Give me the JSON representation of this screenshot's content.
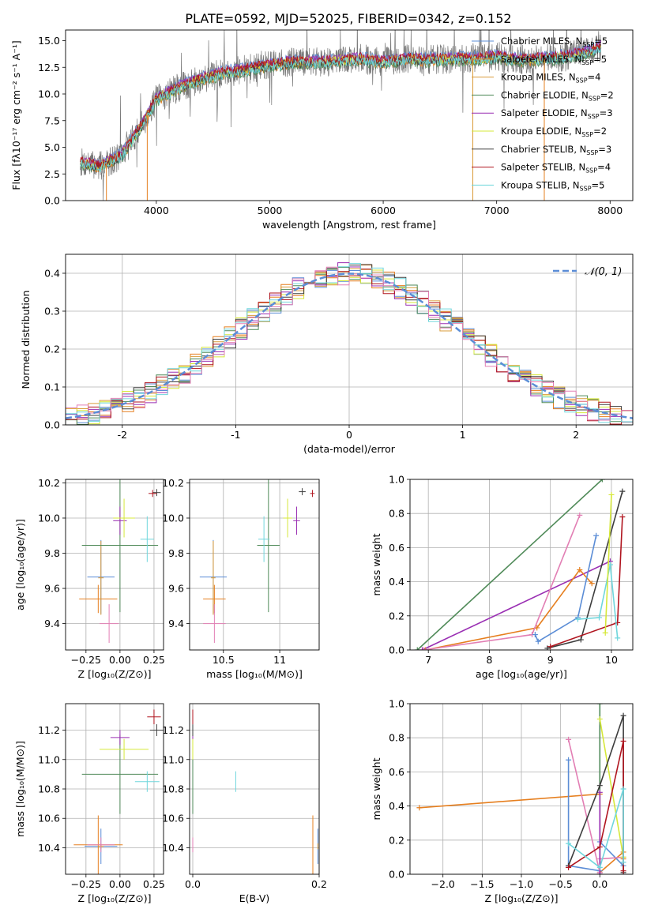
{
  "figure_title": "PLATE=0592, MJD=52025, FIBERID=0342, z=0.152",
  "palette": {
    "Chabrier MILES": "#5b8dd6",
    "Salpeter MILES": "#e67f1f",
    "Kroupa MILES": "#d99b3a",
    "Chabrier ELODIE": "#4f8a58",
    "Salpeter ELODIE": "#9a2fb3",
    "Kroupa ELODIE": "#d6e83a",
    "Chabrier STELIB": "#3d3d3d",
    "Salpeter STELIB": "#b0151f",
    "Kroupa STELIB": "#6fd6dc",
    "pink": "#e27fb4",
    "data": "#777777",
    "normal": "#5b8dd6"
  },
  "chart_data": [
    {
      "id": "spectrum",
      "type": "line",
      "xlabel": "wavelength [Angstrom, rest frame]",
      "ylabel": "Flux [fλ10⁻¹⁷ erg cm⁻² s⁻¹ A⁻¹]",
      "xlim": [
        3200,
        8200
      ],
      "ylim": [
        0,
        16
      ],
      "xticks": [
        4000,
        5000,
        6000,
        7000,
        8000
      ],
      "yticks": [
        0.0,
        2.5,
        5.0,
        7.5,
        10.0,
        12.5,
        15.0
      ],
      "legend_position": "top-right",
      "continuum": {
        "x": [
          3330,
          3500,
          3700,
          3900,
          4000,
          4200,
          4400,
          4600,
          4800,
          5000,
          5200,
          5400,
          5600,
          5800,
          6000,
          6200,
          6400,
          6600,
          6800,
          7000,
          7200,
          7400,
          7600,
          7800,
          7920
        ],
        "y": [
          3.6,
          3.2,
          4.3,
          7.6,
          9.5,
          10.6,
          11.4,
          12.0,
          12.3,
          12.7,
          13.0,
          13.0,
          13.1,
          13.3,
          13.0,
          13.3,
          13.2,
          13.3,
          13.3,
          13.5,
          13.2,
          13.3,
          13.5,
          13.9,
          14.4
        ]
      },
      "series": [
        {
          "name": "Chabrier MILES, N_SSP=5",
          "offset": 0.3
        },
        {
          "name": "Salpeter MILES, N_SSP=5",
          "offset": -0.2
        },
        {
          "name": "Kroupa MILES, N_SSP=4",
          "offset": 0.1
        },
        {
          "name": "Chabrier ELODIE, N_SSP=2",
          "offset": -0.3
        },
        {
          "name": "Salpeter ELODIE, N_SSP=3",
          "offset": 0.2
        },
        {
          "name": "Kroupa ELODIE, N_SSP=2",
          "offset": 0.0
        },
        {
          "name": "Chabrier STELIB, N_SSP=3",
          "offset": -0.1
        },
        {
          "name": "Salpeter STELIB, N_SSP=4",
          "offset": 0.15
        },
        {
          "name": "Kroupa STELIB, N_SSP=5",
          "offset": -0.15
        }
      ],
      "legend": [
        {
          "key": "Chabrier MILES",
          "label": "Chabrier MILES, N",
          "sub": "SSP",
          "tail": "=5"
        },
        {
          "key": "Salpeter MILES",
          "label": "Salpeter MILES, N",
          "sub": "SSP",
          "tail": "=5"
        },
        {
          "key": "Kroupa MILES",
          "label": "Kroupa MILES, N",
          "sub": "SSP",
          "tail": "=4"
        },
        {
          "key": "Chabrier ELODIE",
          "label": "Chabrier ELODIE, N",
          "sub": "SSP",
          "tail": "=2"
        },
        {
          "key": "Salpeter ELODIE",
          "label": "Salpeter ELODIE, N",
          "sub": "SSP",
          "tail": "=3"
        },
        {
          "key": "Kroupa ELODIE",
          "label": "Kroupa ELODIE, N",
          "sub": "SSP",
          "tail": "=2"
        },
        {
          "key": "Chabrier STELIB",
          "label": "Chabrier STELIB, N",
          "sub": "SSP",
          "tail": "=3"
        },
        {
          "key": "Salpeter STELIB",
          "label": "Salpeter STELIB, N",
          "sub": "SSP",
          "tail": "=4"
        },
        {
          "key": "Kroupa STELIB",
          "label": "Kroupa STELIB, N",
          "sub": "SSP",
          "tail": "=5"
        }
      ]
    },
    {
      "id": "residuals",
      "type": "histogram",
      "xlabel": "(data-model)/error",
      "ylabel": "Normed distribution",
      "xlim": [
        -2.5,
        2.5
      ],
      "ylim": [
        0,
        0.45
      ],
      "xticks": [
        -2,
        -1,
        0,
        1,
        2
      ],
      "yticks": [
        0.0,
        0.1,
        0.2,
        0.3,
        0.4
      ],
      "grid": true,
      "bin_width": 0.1,
      "normal_label": "𝒩(0, 1)",
      "legend_position": "top-right"
    },
    {
      "id": "age_vs_Z",
      "type": "errorbar",
      "xlabel": "Z [log₁₀(Z/Z⊙)]",
      "ylabel": "age  [log₁₀(age/yr)]",
      "xlim": [
        -0.4,
        0.32
      ],
      "ylim": [
        9.25,
        10.22
      ],
      "xticks": [
        -0.25,
        0.0,
        0.25
      ],
      "xticklabels": [
        "−0.25",
        "0.00",
        "0.25"
      ],
      "yticks": [
        9.4,
        9.6,
        9.8,
        10.0,
        10.2
      ],
      "grid": true,
      "points": [
        {
          "key": "Chabrier MILES",
          "x": -0.14,
          "y": 9.665,
          "xerr": 0.1,
          "yerr": 0.21
        },
        {
          "key": "Salpeter MILES",
          "x": -0.16,
          "y": 9.54,
          "xerr": 0.14,
          "yerr": 0.08
        },
        {
          "key": "Kroupa MILES",
          "x": -0.14,
          "y": 9.66,
          "xerr": 0.02,
          "yerr": 0.21
        },
        {
          "key": "Chabrier ELODIE",
          "x": 0.0,
          "y": 9.845,
          "xerr": 0.28,
          "yerr": 0.38
        },
        {
          "key": "Salpeter ELODIE",
          "x": 0.0,
          "y": 9.985,
          "xerr": 0.05,
          "yerr": 0.08
        },
        {
          "key": "Kroupa ELODIE",
          "x": 0.03,
          "y": 10.0,
          "xerr": 0.08,
          "yerr": 0.11
        },
        {
          "key": "Chabrier STELIB",
          "x": 0.27,
          "y": 10.145,
          "xerr": 0.03,
          "yerr": 0.02
        },
        {
          "key": "Salpeter STELIB",
          "x": 0.24,
          "y": 10.14,
          "xerr": 0.03,
          "yerr": 0.02
        },
        {
          "key": "Kroupa STELIB",
          "x": 0.2,
          "y": 9.88,
          "xerr": 0.05,
          "yerr": 0.13
        },
        {
          "key": "pink",
          "x": -0.08,
          "y": 9.4,
          "xerr": 0.07,
          "yerr": 0.11
        }
      ]
    },
    {
      "id": "age_vs_mass",
      "type": "errorbar",
      "xlabel": "mass [log₁₀(M/M⊙)]",
      "ylabel": "",
      "xlim": [
        10.2,
        11.35
      ],
      "ylim": [
        9.25,
        10.22
      ],
      "xticks": [
        10.5,
        11.0
      ],
      "yticks": [
        9.4,
        9.6,
        9.8,
        10.0,
        10.2
      ],
      "grid": true,
      "points": [
        {
          "key": "Chabrier MILES",
          "x": 10.41,
          "y": 9.665,
          "xerr": 0.12,
          "yerr": 0.21
        },
        {
          "key": "Salpeter MILES",
          "x": 10.42,
          "y": 9.54,
          "xerr": 0.1,
          "yerr": 0.08
        },
        {
          "key": "Kroupa MILES",
          "x": 10.41,
          "y": 9.66,
          "xerr": 0.02,
          "yerr": 0.21
        },
        {
          "key": "Chabrier ELODIE",
          "x": 10.9,
          "y": 9.845,
          "xerr": 0.1,
          "yerr": 0.38
        },
        {
          "key": "Salpeter ELODIE",
          "x": 11.15,
          "y": 9.985,
          "xerr": 0.03,
          "yerr": 0.08
        },
        {
          "key": "Kroupa ELODIE",
          "x": 11.07,
          "y": 10.0,
          "xerr": 0.04,
          "yerr": 0.11
        },
        {
          "key": "Chabrier STELIB",
          "x": 11.2,
          "y": 10.15,
          "xerr": 0.03,
          "yerr": 0.02
        },
        {
          "key": "Salpeter STELIB",
          "x": 11.29,
          "y": 10.14,
          "xerr": 0.02,
          "yerr": 0.02
        },
        {
          "key": "Kroupa STELIB",
          "x": 10.86,
          "y": 9.88,
          "xerr": 0.05,
          "yerr": 0.13
        },
        {
          "key": "pink",
          "x": 10.42,
          "y": 9.4,
          "xerr": 0.1,
          "yerr": 0.11
        }
      ]
    },
    {
      "id": "weight_vs_age",
      "type": "line",
      "xlabel": "age  [log₁₀(age/yr)]",
      "ylabel": "mass weight",
      "xlim": [
        6.7,
        10.35
      ],
      "ylim": [
        0,
        1
      ],
      "xticks": [
        7,
        8,
        9,
        10
      ],
      "yticks": [
        0.0,
        0.2,
        0.4,
        0.6,
        0.8,
        1.0
      ],
      "grid": true,
      "series": [
        {
          "key": "Chabrier ELODIE",
          "x": [
            6.82,
            9.85
          ],
          "y": [
            0.0,
            1.0
          ]
        },
        {
          "key": "Salpeter ELODIE",
          "x": [
            6.9,
            9.98
          ],
          "y": [
            0.0,
            0.52
          ]
        },
        {
          "key": "Salpeter MILES",
          "x": [
            6.95,
            8.78,
            9.48,
            9.68
          ],
          "y": [
            0.0,
            0.13,
            0.47,
            0.39
          ]
        },
        {
          "key": "pink",
          "x": [
            6.92,
            8.7,
            9.48
          ],
          "y": [
            0.0,
            0.09,
            0.79
          ]
        },
        {
          "key": "Chabrier MILES",
          "x": [
            8.75,
            8.8,
            9.45,
            9.75
          ],
          "y": [
            0.09,
            0.05,
            0.19,
            0.67
          ]
        },
        {
          "key": "Chabrier STELIB",
          "x": [
            8.95,
            9.5,
            10.18
          ],
          "y": [
            0.01,
            0.06,
            0.93
          ]
        },
        {
          "key": "Salpeter STELIB",
          "x": [
            9.0,
            10.1,
            10.18
          ],
          "y": [
            0.02,
            0.16,
            0.78
          ]
        },
        {
          "key": "Kroupa STELIB",
          "x": [
            9.45,
            9.8,
            9.98,
            10.1
          ],
          "y": [
            0.18,
            0.19,
            0.5,
            0.07
          ]
        },
        {
          "key": "Kroupa ELODIE",
          "x": [
            9.9,
            10.0
          ],
          "y": [
            0.1,
            0.91
          ]
        }
      ]
    },
    {
      "id": "mass_vs_Z",
      "type": "errorbar",
      "xlabel": "Z [log₁₀(Z/Z⊙)]",
      "ylabel": "mass [log₁₀(M/M⊙)]",
      "xlim": [
        -0.4,
        0.32
      ],
      "ylim": [
        10.22,
        11.38
      ],
      "xticks": [
        -0.25,
        0.0,
        0.25
      ],
      "xticklabels": [
        "−0.25",
        "0.00",
        "0.25"
      ],
      "yticks": [
        10.4,
        10.6,
        10.8,
        11.0,
        11.2
      ],
      "grid": true,
      "points": [
        {
          "key": "Chabrier MILES",
          "x": -0.14,
          "y": 10.41,
          "xerr": 0.12,
          "yerr": 0.12
        },
        {
          "key": "Salpeter MILES",
          "x": -0.16,
          "y": 10.42,
          "xerr": 0.18,
          "yerr": 0.2
        },
        {
          "key": "Kroupa MILES",
          "x": -0.14,
          "y": 10.41,
          "xerr": 0.02,
          "yerr": 0.02
        },
        {
          "key": "Chabrier ELODIE",
          "x": 0.0,
          "y": 10.9,
          "xerr": 0.28,
          "yerr": 0.27
        },
        {
          "key": "Salpeter ELODIE",
          "x": 0.0,
          "y": 11.15,
          "xerr": 0.07,
          "yerr": 0.05
        },
        {
          "key": "Kroupa ELODIE",
          "x": 0.03,
          "y": 11.07,
          "xerr": 0.18,
          "yerr": 0.07
        },
        {
          "key": "Chabrier STELIB",
          "x": 0.27,
          "y": 11.2,
          "xerr": 0.05,
          "yerr": 0.04
        },
        {
          "key": "Salpeter STELIB",
          "x": 0.25,
          "y": 11.29,
          "xerr": 0.05,
          "yerr": 0.05
        },
        {
          "key": "Kroupa STELIB",
          "x": 0.2,
          "y": 10.85,
          "xerr": 0.09,
          "yerr": 0.07
        },
        {
          "key": "pink",
          "x": -0.14,
          "y": 10.42,
          "xerr": 0.1,
          "yerr": 0.05
        }
      ]
    },
    {
      "id": "mass_vs_EBV",
      "type": "errorbar",
      "xlabel": "E(B-V)",
      "ylabel": "",
      "xlim": [
        -0.005,
        0.2
      ],
      "ylim": [
        10.22,
        11.38
      ],
      "xticks": [
        0.0,
        0.2
      ],
      "xticklabels": [
        "0.0",
        "0.2"
      ],
      "yticks": [
        10.4,
        10.6,
        10.8,
        11.0,
        11.2
      ],
      "grid": true,
      "points": [
        {
          "key": "Chabrier MILES",
          "x": 0.198,
          "y": 10.41,
          "xerr": 0,
          "yerr": 0.12
        },
        {
          "key": "Salpeter MILES",
          "x": 0.19,
          "y": 10.42,
          "xerr": 0,
          "yerr": 0.2
        },
        {
          "key": "Kroupa MILES",
          "x": 0.198,
          "y": 10.41,
          "xerr": 0,
          "yerr": 0.02
        },
        {
          "key": "Chabrier ELODIE",
          "x": 0.0,
          "y": 10.9,
          "xerr": 0,
          "yerr": 0.27
        },
        {
          "key": "Salpeter ELODIE",
          "x": 0.0,
          "y": 11.15,
          "xerr": 0,
          "yerr": 0.05
        },
        {
          "key": "Kroupa ELODIE",
          "x": 0.0,
          "y": 11.07,
          "xerr": 0,
          "yerr": 0.07
        },
        {
          "key": "Chabrier STELIB",
          "x": 0.0,
          "y": 11.2,
          "xerr": 0,
          "yerr": 0.04
        },
        {
          "key": "Salpeter STELIB",
          "x": 0.0,
          "y": 11.29,
          "xerr": 0,
          "yerr": 0.05
        },
        {
          "key": "Kroupa STELIB",
          "x": 0.068,
          "y": 10.85,
          "xerr": 0,
          "yerr": 0.07
        },
        {
          "key": "pink",
          "x": 0.0,
          "y": 10.42,
          "xerr": 0,
          "yerr": 0.05
        }
      ]
    },
    {
      "id": "weight_vs_Z",
      "type": "line",
      "xlabel": "Z [log₁₀(Z/Z⊙)]",
      "ylabel": "mass weight",
      "xlim": [
        -2.42,
        0.42
      ],
      "ylim": [
        0,
        1
      ],
      "xticks": [
        -2.0,
        -1.5,
        -1.0,
        -0.5,
        0.0
      ],
      "xticklabels": [
        "−2.0",
        "−1.5",
        "−1.0",
        "−0.5",
        "0.0"
      ],
      "yticks": [
        0.0,
        0.2,
        0.4,
        0.6,
        0.8,
        1.0
      ],
      "grid": true,
      "series": [
        {
          "key": "Salpeter MILES",
          "x": [
            -2.3,
            0.0,
            0.0,
            0.3,
            0.3
          ],
          "y": [
            0.39,
            0.47,
            0.01,
            0.13,
            0.09
          ]
        },
        {
          "key": "Chabrier MILES",
          "x": [
            -0.4,
            -0.4,
            0.0,
            0.0,
            0.3
          ],
          "y": [
            0.67,
            0.05,
            0.02,
            0.19,
            0.05
          ]
        },
        {
          "key": "pink",
          "x": [
            -0.4,
            0.0,
            0.0,
            0.3
          ],
          "y": [
            0.79,
            0.01,
            0.09,
            0.1
          ]
        },
        {
          "key": "Chabrier ELODIE",
          "x": [
            0.0,
            0.0
          ],
          "y": [
            0.0,
            1.0
          ]
        },
        {
          "key": "Salpeter ELODIE",
          "x": [
            0.0,
            0.0
          ],
          "y": [
            0.0,
            0.48
          ]
        },
        {
          "key": "Kroupa ELODIE",
          "x": [
            0.0,
            0.3
          ],
          "y": [
            0.91,
            0.1
          ]
        },
        {
          "key": "Chabrier STELIB",
          "x": [
            -0.4,
            0.0,
            0.3,
            0.3
          ],
          "y": [
            0.05,
            0.52,
            0.93,
            0.01
          ]
        },
        {
          "key": "Salpeter STELIB",
          "x": [
            -0.4,
            0.0,
            0.3,
            0.3
          ],
          "y": [
            0.04,
            0.16,
            0.78,
            0.02
          ]
        },
        {
          "key": "Kroupa STELIB",
          "x": [
            -0.4,
            0.0,
            0.3,
            0.3
          ],
          "y": [
            0.18,
            0.04,
            0.5,
            0.07
          ]
        }
      ]
    }
  ]
}
